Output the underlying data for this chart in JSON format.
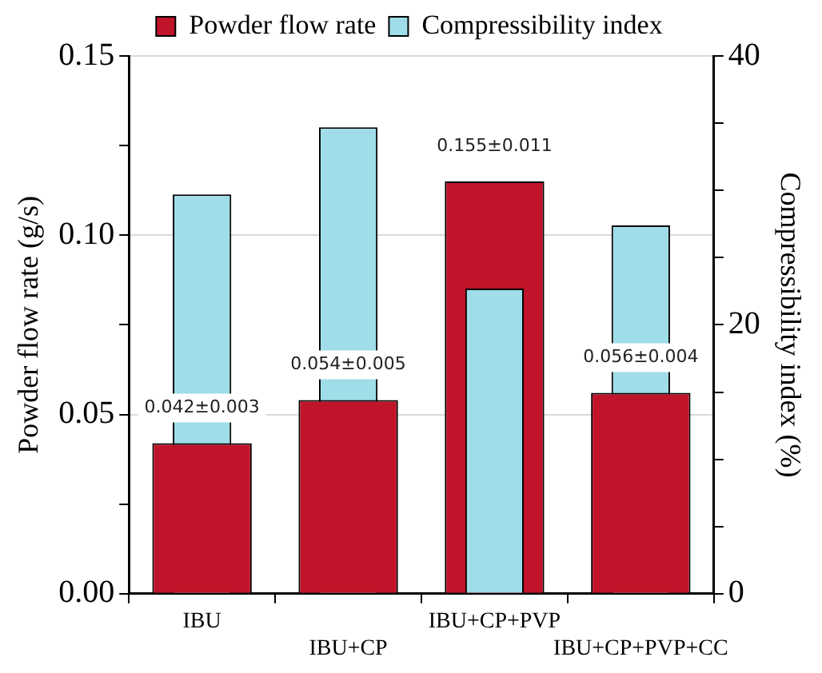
{
  "chart_data": {
    "type": "bar",
    "categories": [
      "IBU",
      "IBU+CP",
      "IBU+CP+PVP",
      "IBU+CP+PVP+CC"
    ],
    "series": [
      {
        "name": "Powder flow rate",
        "color": "#c0142a",
        "values": [
          0.042,
          0.054,
          0.115,
          0.056
        ]
      },
      {
        "name": "Compressibility index",
        "color": "#9fdde8",
        "axis": "y2",
        "values": [
          29.7,
          34.7,
          22.7,
          27.4
        ]
      }
    ],
    "ylabel": "Powder flow rate (g/s)",
    "y2label": "Compressibility index (%)",
    "ylim": [
      0,
      0.15
    ],
    "yticks": [
      {
        "value": 0,
        "label": "0.00"
      },
      {
        "value": 0.025,
        "label": null
      },
      {
        "value": 0.05,
        "label": "0.05"
      },
      {
        "value": 0.075,
        "label": null
      },
      {
        "value": 0.1,
        "label": "0.10"
      },
      {
        "value": 0.125,
        "label": null
      },
      {
        "value": 0.15,
        "label": "0.15"
      }
    ],
    "y2lim": [
      0,
      40
    ],
    "y2ticks": [
      0,
      {
        "value": 5,
        "label": null
      },
      {
        "value": 10,
        "label": null
      },
      {
        "value": 15,
        "label": null
      },
      20,
      {
        "value": 25,
        "label": null
      },
      {
        "value": 30,
        "label": null
      },
      {
        "value": 35,
        "label": null
      },
      40
    ],
    "annotations": [
      {
        "text": "0.042±0.003",
        "x": "IBU",
        "y": 0.042
      },
      {
        "text": "0.054±0.005",
        "x": "IBU+CP",
        "y": 0.054
      },
      {
        "text": "0.155±0.011",
        "x": "IBU+CP+PVP",
        "y": 0.115
      },
      {
        "text": "0.056±0.004",
        "x": "IBU+CP+PVP+CC",
        "y": 0.056
      }
    ],
    "grid": "y",
    "legend": "top"
  }
}
